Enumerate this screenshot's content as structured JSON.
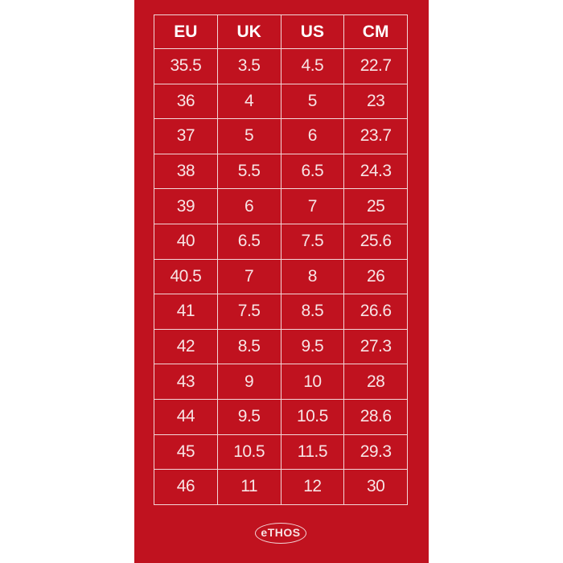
{
  "table": {
    "header": [
      "EU",
      "UK",
      "US",
      "CM"
    ],
    "rows": [
      [
        "35.5",
        "3.5",
        "4.5",
        "22.7"
      ],
      [
        "36",
        "4",
        "5",
        "23"
      ],
      [
        "37",
        "5",
        "6",
        "23.7"
      ],
      [
        "38",
        "5.5",
        "6.5",
        "24.3"
      ],
      [
        "39",
        "6",
        "7",
        "25"
      ],
      [
        "40",
        "6.5",
        "7.5",
        "25.6"
      ],
      [
        "40.5",
        "7",
        "8",
        "26"
      ],
      [
        "41",
        "7.5",
        "8.5",
        "26.6"
      ],
      [
        "42",
        "8.5",
        "9.5",
        "27.3"
      ],
      [
        "43",
        "9",
        "10",
        "28"
      ],
      [
        "44",
        "9.5",
        "10.5",
        "28.6"
      ],
      [
        "45",
        "10.5",
        "11.5",
        "29.3"
      ],
      [
        "46",
        "11",
        "12",
        "30"
      ]
    ]
  },
  "logo": {
    "text": "eTHOS"
  }
}
